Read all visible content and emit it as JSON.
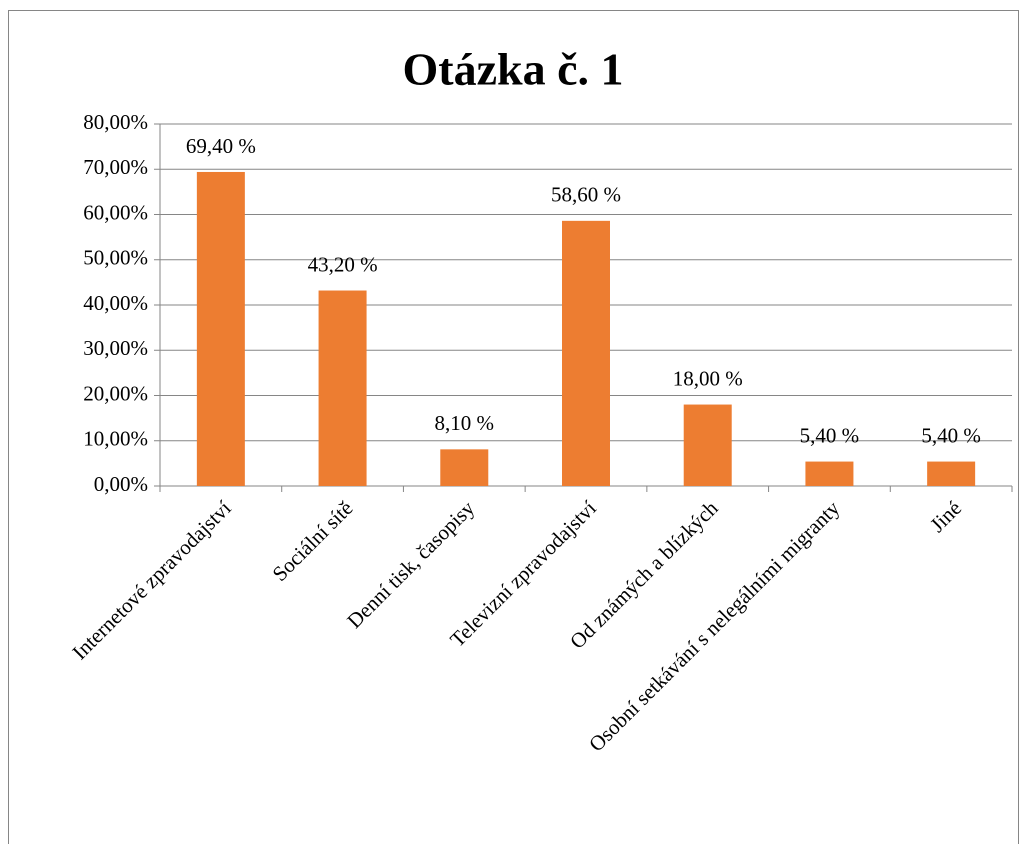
{
  "chart_data": {
    "type": "bar",
    "title": "Otázka č. 1",
    "categories": [
      "Internetové zpravodajství",
      "Sociální sítě",
      "Denní tisk, časopisy",
      "Televizní zpravodajství",
      "Od známých a blízkých",
      "Osobní setkávání s nelegálními migranty",
      "Jiné"
    ],
    "values": [
      69.4,
      43.2,
      8.1,
      58.6,
      18.0,
      5.4,
      5.4
    ],
    "value_labels": [
      "69,40 %",
      "43,20 %",
      "8,10 %",
      "58,60 %",
      "18,00 %",
      "5,40 %",
      "5,40 %"
    ],
    "color": "#ed7d31",
    "ylim": [
      0,
      80
    ],
    "yticks": [
      {
        "value": 0,
        "label": "0,00%"
      },
      {
        "value": 10,
        "label": "10,00%"
      },
      {
        "value": 20,
        "label": "20,00%"
      },
      {
        "value": 30,
        "label": "30,00%"
      },
      {
        "value": 40,
        "label": "40,00%"
      },
      {
        "value": 50,
        "label": "50,00%"
      },
      {
        "value": 60,
        "label": "60,00%"
      },
      {
        "value": 70,
        "label": "70,00%"
      },
      {
        "value": 80,
        "label": "80,00%"
      }
    ],
    "grid": true
  }
}
